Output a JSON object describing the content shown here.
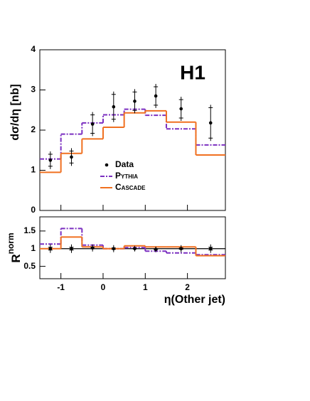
{
  "chart_data": [
    {
      "type": "step",
      "y_label": "dσ/dη [nb]",
      "annotation": "H1",
      "x": [
        -1.25,
        -0.75,
        -0.25,
        0.25,
        0.75,
        1.25,
        1.85,
        2.55
      ],
      "xlim": [
        -1.5,
        2.9
      ],
      "ylim": [
        0,
        4
      ],
      "yticks": [
        0,
        1,
        2,
        3,
        4
      ],
      "legend": "center-left",
      "series": [
        {
          "name": "Data",
          "color": "#000000",
          "values": [
            1.25,
            1.33,
            2.15,
            2.58,
            2.72,
            2.85,
            2.53,
            2.18
          ],
          "errors": [
            0.22,
            0.22,
            0.3,
            0.38,
            0.3,
            0.3,
            0.3,
            0.45
          ]
        },
        {
          "name": "Pythia",
          "color": "#7b2fc0",
          "dashed": true,
          "bins": [
            -1.5,
            -1,
            -0.5,
            0,
            0.5,
            1,
            1.5,
            2.2,
            2.9
          ],
          "values": [
            1.28,
            1.9,
            2.18,
            2.38,
            2.52,
            2.37,
            2.03,
            1.63
          ]
        },
        {
          "name": "Cascade",
          "color": "#f07020",
          "dashed": false,
          "bins": [
            -1.5,
            -1,
            -0.5,
            0,
            0.5,
            1,
            1.5,
            2.2,
            2.9
          ],
          "values": [
            0.95,
            1.42,
            1.78,
            2.07,
            2.43,
            2.48,
            2.2,
            1.38
          ]
        }
      ]
    },
    {
      "type": "step",
      "y_label": "R",
      "y_label_sup": "norm",
      "x_label": "η(Other jet)",
      "x": [
        -1.25,
        -0.75,
        -0.25,
        0.25,
        0.75,
        1.25,
        1.85,
        2.55
      ],
      "xlim": [
        -1.5,
        2.9
      ],
      "ylim": [
        0.15,
        1.9
      ],
      "yticks": [
        0.5,
        1,
        1.5
      ],
      "xticks": [
        -1,
        0,
        1,
        2
      ],
      "reference_line": 1,
      "series": [
        {
          "color": "#000000",
          "values": [
            1.0,
            1.0,
            1.02,
            1.0,
            1.0,
            0.98,
            1.0,
            1.0
          ],
          "errors": [
            0.12,
            0.12,
            0.1,
            0.1,
            0.08,
            0.08,
            0.1,
            0.12
          ]
        },
        {
          "color": "#7b2fc0",
          "dashed": true,
          "bins": [
            -1.5,
            -1,
            -0.5,
            0,
            0.5,
            1,
            1.5,
            2.2,
            2.9
          ],
          "values": [
            1.13,
            1.57,
            1.1,
            1.0,
            1.03,
            0.93,
            0.88,
            0.83
          ]
        },
        {
          "color": "#f07020",
          "dashed": false,
          "bins": [
            -1.5,
            -1,
            -0.5,
            0,
            0.5,
            1,
            1.5,
            2.2,
            2.9
          ],
          "values": [
            1.0,
            1.33,
            1.05,
            1.0,
            1.08,
            1.05,
            1.05,
            0.8
          ]
        }
      ]
    }
  ]
}
